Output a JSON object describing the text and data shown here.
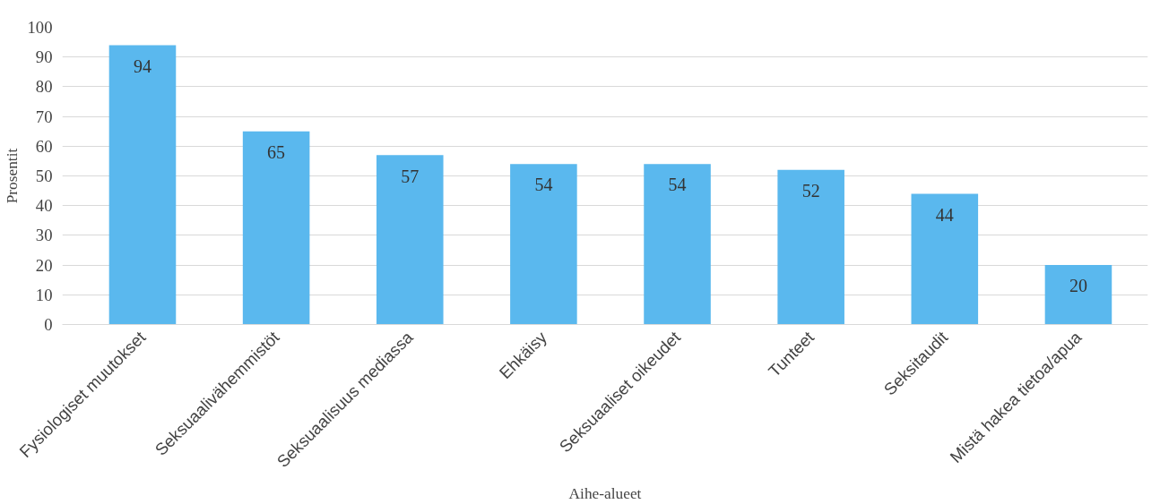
{
  "chart_data": {
    "type": "bar",
    "xlabel": "Aihe-alueet",
    "ylabel": "Prosentit",
    "categories": [
      "Fysiologiset muutokset",
      "Seksuaalivähemmistöt",
      "Seksuaalisuus mediassa",
      "Ehkäisy",
      "Seksuaaliset oikeudet",
      "Tunteet",
      "Seksitaudit",
      "Mistä hakea tietoa/apua"
    ],
    "values": [
      94,
      65,
      57,
      54,
      54,
      52,
      44,
      20
    ],
    "color": "#5ab8ee",
    "ylim": [
      0,
      100
    ],
    "yticks": [
      0,
      10,
      20,
      30,
      40,
      50,
      60,
      70,
      80,
      90,
      100
    ],
    "grid": "y",
    "data_labels": true
  }
}
